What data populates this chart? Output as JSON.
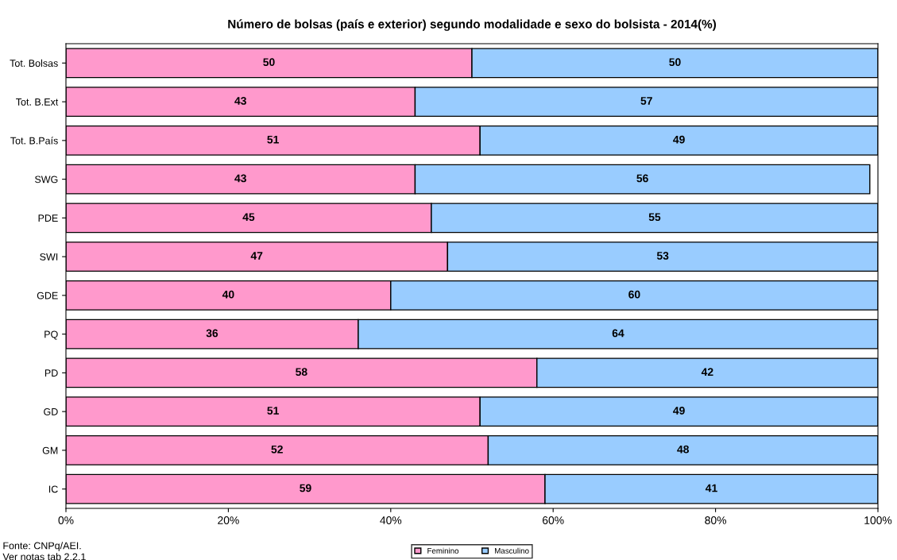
{
  "chart_data": {
    "type": "bar",
    "orientation": "horizontal",
    "stacked": true,
    "title": "Número de bolsas (país e exterior) segundo modalidade e sexo do bolsista - 2014(%)",
    "categories": [
      "Tot. Bolsas",
      "Tot. B.Ext",
      "Tot. B.País",
      "SWG",
      "PDE",
      "SWI",
      "GDE",
      "PQ",
      "PD",
      "GD",
      "GM",
      "IC"
    ],
    "series": [
      {
        "name": "Feminino",
        "color": "#ff99cc",
        "values": [
          50,
          43,
          51,
          43,
          45,
          47,
          40,
          36,
          58,
          51,
          52,
          59
        ]
      },
      {
        "name": "Masculino",
        "color": "#99ccff",
        "values": [
          50,
          57,
          49,
          56,
          55,
          53,
          60,
          64,
          42,
          49,
          48,
          41
        ]
      }
    ],
    "xlim": [
      0,
      100
    ],
    "xticks": [
      {
        "value": 0,
        "label": "0%"
      },
      {
        "value": 20,
        "label": "20%"
      },
      {
        "value": 40,
        "label": "40%"
      },
      {
        "value": 60,
        "label": "60%"
      },
      {
        "value": 80,
        "label": "80%"
      },
      {
        "value": 100,
        "label": "100%"
      }
    ],
    "data_labels": true,
    "grid": false,
    "legend": "bottom",
    "annotations": [
      "Fonte: CNPq/AEI.",
      "Ver notas tab 2.2.1"
    ]
  }
}
